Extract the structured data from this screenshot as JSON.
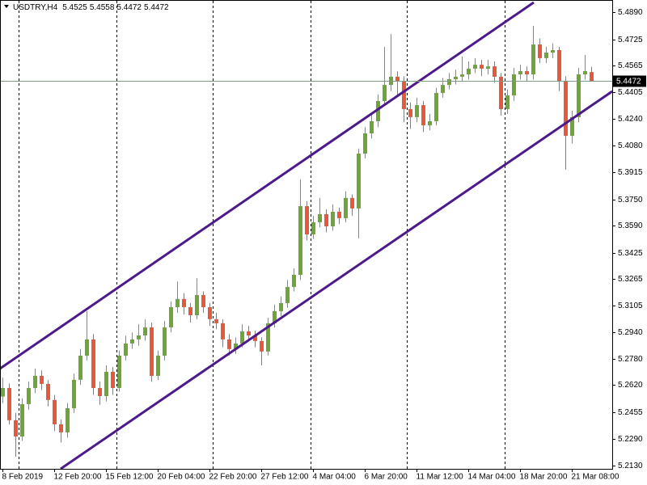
{
  "chart_data": {
    "type": "candlestick",
    "title": "USDTRY,H4",
    "up_color": "#6fa43a",
    "down_color": "#e4583c",
    "price_line_color": "#7f9b86",
    "ylim": [
      5.211,
      5.4964
    ],
    "yticks": [
      {
        "value": 5.489,
        "label": "5.4890"
      },
      5.4725,
      5.4565,
      5.4405,
      {
        "value": 5.424,
        "label": "5.4240"
      },
      {
        "value": 5.408,
        "label": "5.4080"
      },
      5.3915,
      {
        "value": 5.375,
        "label": "5.3750"
      },
      {
        "value": 5.359,
        "label": "5.3590"
      },
      5.3425,
      5.3265,
      5.3105,
      {
        "value": 5.294,
        "label": "5.2940"
      },
      {
        "value": 5.278,
        "label": "5.2780"
      },
      {
        "value": 5.262,
        "label": "5.2620"
      },
      5.2455,
      {
        "value": 5.229,
        "label": "5.2290"
      },
      {
        "value": 5.213,
        "label": "5.2130"
      }
    ],
    "categories": [
      "8 Feb 2019",
      null,
      null,
      null,
      null,
      null,
      null,
      null,
      "12 Feb 20:00",
      null,
      null,
      null,
      null,
      null,
      null,
      null,
      "15 Feb 12:00",
      null,
      null,
      null,
      null,
      null,
      null,
      null,
      "20 Feb 04:00",
      null,
      null,
      null,
      null,
      null,
      null,
      null,
      "22 Feb 20:00",
      null,
      null,
      null,
      null,
      null,
      null,
      null,
      "27 Feb 12:00",
      null,
      null,
      null,
      null,
      null,
      null,
      null,
      "4 Mar 04:00",
      null,
      null,
      null,
      null,
      null,
      null,
      null,
      "6 Mar 20:00",
      null,
      null,
      null,
      null,
      null,
      null,
      null,
      "11 Mar 12:00",
      null,
      null,
      null,
      null,
      null,
      null,
      null,
      "14 Mar 04:00",
      null,
      null,
      null,
      null,
      null,
      null,
      null,
      "18 Mar 20:00",
      null,
      null,
      null,
      null,
      null,
      null,
      null,
      "21 Mar 08:00",
      null,
      null,
      null
    ],
    "candles": [
      [
        5.255,
        5.2665,
        5.251,
        5.2602
      ],
      [
        5.2602,
        5.263,
        5.238,
        5.2406
      ],
      [
        5.2406,
        5.245,
        5.2184,
        5.2307
      ],
      [
        5.2307,
        5.254,
        5.228,
        5.2504
      ],
      [
        5.2504,
        5.264,
        5.247,
        5.2602
      ],
      [
        5.2602,
        5.272,
        5.257,
        5.2676
      ],
      [
        5.2676,
        5.271,
        5.259,
        5.2627
      ],
      [
        5.2627,
        5.265,
        5.249,
        5.2529
      ],
      [
        5.2529,
        5.256,
        5.234,
        5.2381
      ],
      [
        5.2381,
        5.241,
        5.227,
        5.2332
      ],
      [
        5.2332,
        5.251,
        5.23,
        5.2479
      ],
      [
        5.2479,
        5.269,
        5.245,
        5.2652
      ],
      [
        5.2652,
        5.284,
        5.262,
        5.2799
      ],
      [
        5.2799,
        5.307,
        5.277,
        5.2898
      ],
      [
        5.2898,
        5.293,
        5.256,
        5.2602
      ],
      [
        5.2602,
        5.264,
        5.25,
        5.2553
      ],
      [
        5.2553,
        5.274,
        5.252,
        5.2701
      ],
      [
        5.2701,
        5.273,
        5.256,
        5.2602
      ],
      [
        5.2602,
        5.283,
        5.258,
        5.2799
      ],
      [
        5.2799,
        5.292,
        5.277,
        5.2873
      ],
      [
        5.2873,
        5.294,
        5.284,
        5.2898
      ],
      [
        5.2898,
        5.299,
        5.286,
        5.2922
      ],
      [
        5.2922,
        5.302,
        5.289,
        5.2971
      ],
      [
        5.2971,
        5.3,
        5.264,
        5.2676
      ],
      [
        5.2676,
        5.283,
        5.265,
        5.2799
      ],
      [
        5.2799,
        5.301,
        5.277,
        5.2971
      ],
      [
        5.2971,
        5.313,
        5.294,
        5.3094
      ],
      [
        5.3094,
        5.325,
        5.306,
        5.3144
      ],
      [
        5.3144,
        5.318,
        5.305,
        5.3094
      ],
      [
        5.3094,
        5.312,
        5.3,
        5.3045
      ],
      [
        5.3045,
        5.327,
        5.302,
        5.3168
      ],
      [
        5.3168,
        5.319,
        5.306,
        5.3094
      ],
      [
        5.3094,
        5.312,
        5.298,
        5.3021
      ],
      [
        5.3021,
        5.306,
        5.296,
        5.2996
      ],
      [
        5.2996,
        5.302,
        5.285,
        5.2898
      ],
      [
        5.2898,
        5.293,
        5.28,
        5.2839
      ],
      [
        5.2839,
        5.291,
        5.281,
        5.2873
      ],
      [
        5.2873,
        5.299,
        5.285,
        5.2947
      ],
      [
        5.2947,
        5.298,
        5.289,
        5.2922
      ],
      [
        5.2922,
        5.295,
        5.285,
        5.2888
      ],
      [
        5.2888,
        5.291,
        5.274,
        5.2824
      ],
      [
        5.2824,
        5.303,
        5.28,
        5.2996
      ],
      [
        5.2996,
        5.311,
        5.297,
        5.307
      ],
      [
        5.307,
        5.316,
        5.304,
        5.3119
      ],
      [
        5.3119,
        5.326,
        5.309,
        5.3217
      ],
      [
        5.3217,
        5.333,
        5.319,
        5.3291
      ],
      [
        5.3291,
        5.3872,
        5.326,
        5.3709
      ],
      [
        5.3709,
        5.374,
        5.35,
        5.3537
      ],
      [
        5.3537,
        5.365,
        5.351,
        5.3611
      ],
      [
        5.3611,
        5.376,
        5.358,
        5.366
      ],
      [
        5.366,
        5.369,
        5.355,
        5.3586
      ],
      [
        5.3586,
        5.372,
        5.356,
        5.3675
      ],
      [
        5.3675,
        5.37,
        5.36,
        5.3636
      ],
      [
        5.3636,
        5.38,
        5.361,
        5.3759
      ],
      [
        5.3759,
        5.378,
        5.365,
        5.3695
      ],
      [
        5.3695,
        5.406,
        5.3513,
        5.4029
      ],
      [
        5.4029,
        5.419,
        5.4,
        5.4152
      ],
      [
        5.4152,
        5.427,
        5.412,
        5.4226
      ],
      [
        5.4226,
        5.439,
        5.419,
        5.4349
      ],
      [
        5.4349,
        5.4679,
        5.432,
        5.4447
      ],
      [
        5.4447,
        5.4757,
        5.441,
        5.4497
      ],
      [
        5.4497,
        5.453,
        5.438,
        5.4472
      ],
      [
        5.4472,
        5.45,
        5.422,
        5.43
      ],
      [
        5.43,
        5.434,
        5.418,
        5.4251
      ],
      [
        5.4251,
        5.437,
        5.422,
        5.4324
      ],
      [
        5.4324,
        5.435,
        5.416,
        5.4201
      ],
      [
        5.4201,
        5.427,
        5.417,
        5.4226
      ],
      [
        5.4226,
        5.443,
        5.42,
        5.4398
      ],
      [
        5.4398,
        5.449,
        5.437,
        5.4447
      ],
      [
        5.4447,
        5.452,
        5.442,
        5.4482
      ],
      [
        5.4482,
        5.454,
        5.445,
        5.4497
      ],
      [
        5.4497,
        5.462,
        5.447,
        5.4511
      ],
      [
        5.4511,
        5.459,
        5.448,
        5.4546
      ],
      [
        5.4546,
        5.461,
        5.452,
        5.457
      ],
      [
        5.457,
        5.46,
        5.45,
        5.4546
      ],
      [
        5.4546,
        5.46,
        5.451,
        5.456
      ],
      [
        5.456,
        5.459,
        5.446,
        5.4497
      ],
      [
        5.4497,
        5.452,
        5.426,
        5.43
      ],
      [
        5.43,
        5.442,
        5.427,
        5.4383
      ],
      [
        5.4383,
        5.455,
        5.435,
        5.4511
      ],
      [
        5.4511,
        5.457,
        5.448,
        5.4531
      ],
      [
        5.4531,
        5.456,
        5.447,
        5.4511
      ],
      [
        5.4511,
        5.4807,
        5.448,
        5.4693
      ],
      [
        5.4693,
        5.473,
        5.458,
        5.461
      ],
      [
        5.461,
        5.468,
        5.458,
        5.4644
      ],
      [
        5.4644,
        5.47,
        5.461,
        5.4659
      ],
      [
        5.4659,
        5.468,
        5.441,
        5.4472
      ],
      [
        5.4472,
        5.45,
        5.3931,
        5.4137
      ],
      [
        5.4137,
        5.429,
        5.409,
        5.4251
      ],
      [
        5.4251,
        5.455,
        5.422,
        5.4511
      ],
      [
        5.4511,
        5.463,
        5.448,
        5.4531
      ],
      [
        5.4525,
        5.4558,
        5.4472,
        5.4472
      ]
    ]
  }
}
